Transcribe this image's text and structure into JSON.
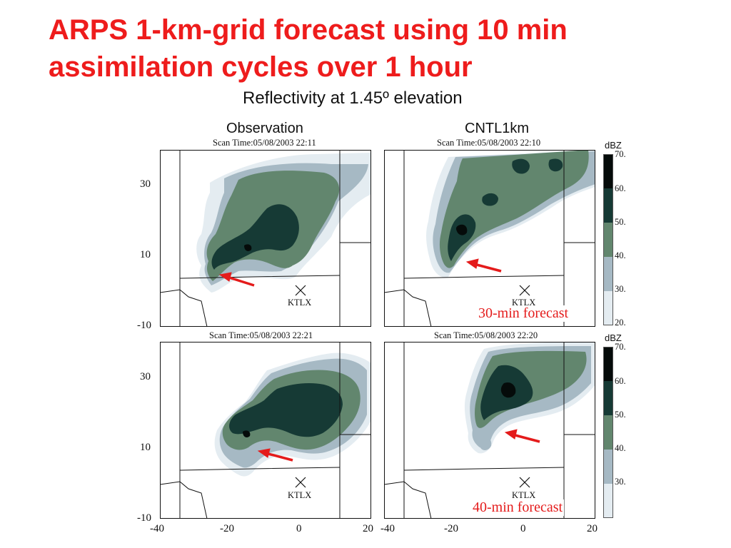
{
  "title": "ARPS 1-km-grid forecast using 10 min assimilation cycles over 1 hour",
  "subtitle": "Reflectivity at 1.45º elevation",
  "columns": {
    "left": "Observation",
    "right": "CNTL1km"
  },
  "panels": {
    "top_left": {
      "scan_time": "Scan Time:05/08/2003 22:11"
    },
    "top_right": {
      "scan_time": "Scan Time:05/08/2003 22:10"
    },
    "bottom_left": {
      "scan_time": "Scan Time:05/08/2003 22:21"
    },
    "bottom_right": {
      "scan_time": "Scan Time:05/08/2003 22:20"
    }
  },
  "site_label": "KTLX",
  "forecast_labels": {
    "top": "30-min forecast",
    "bottom": "40-min forecast"
  },
  "y_ticks": [
    "30",
    "10",
    "-10"
  ],
  "x_ticks": [
    "-40",
    "-20",
    "0",
    "20"
  ],
  "colorbar": {
    "unit": "dBZ",
    "ticks": [
      "70.",
      "60.",
      "50.",
      "40.",
      "30.",
      "20."
    ]
  },
  "colors": {
    "title": "#ee1c1c",
    "level_20": "#e4ecf1",
    "level_30": "#a6b9c4",
    "level_40": "#62866e",
    "level_50": "#163a35",
    "level_60": "#050b0a",
    "arrow": "#e41b1b"
  }
}
